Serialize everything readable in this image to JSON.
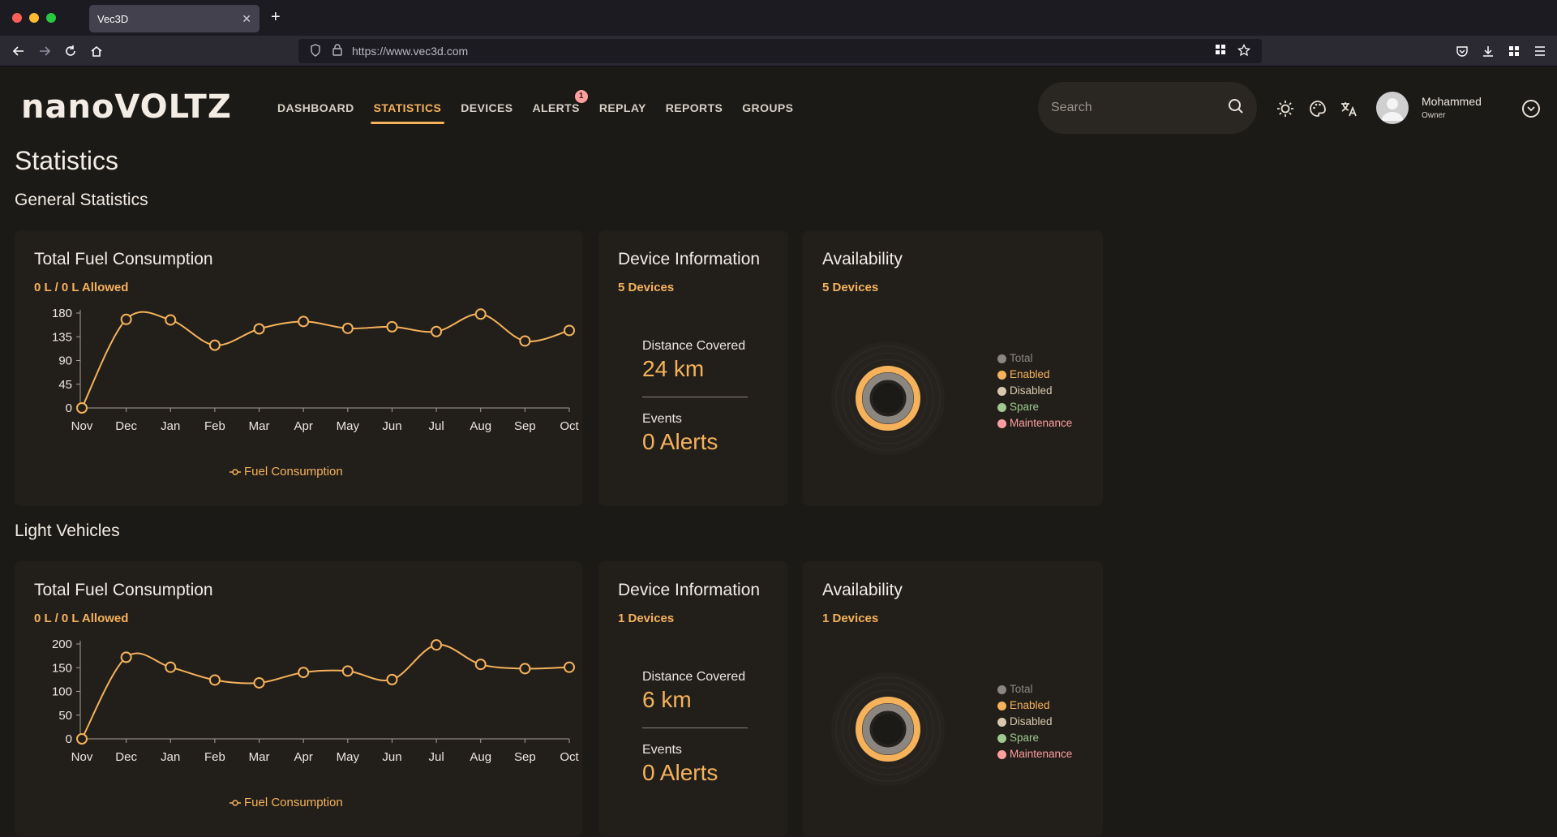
{
  "browser": {
    "tab_title": "Vec3D",
    "url": "https://www.vec3d.com"
  },
  "app": {
    "logo": "nanoVOLTZ",
    "nav": [
      {
        "label": "DASHBOARD"
      },
      {
        "label": "STATISTICS"
      },
      {
        "label": "DEVICES"
      },
      {
        "label": "ALERTS"
      },
      {
        "label": "REPLAY"
      },
      {
        "label": "REPORTS"
      },
      {
        "label": "GROUPS"
      }
    ],
    "active_nav": "STATISTICS",
    "alerts_badge": "1",
    "search_placeholder": "Search",
    "user": {
      "name": "Mohammed",
      "role": "Owner"
    },
    "accent_color": "#f6b25b"
  },
  "page": {
    "title": "Statistics",
    "sections": [
      {
        "title": "General Statistics",
        "fuel": {
          "title": "Total Fuel Consumption",
          "subtitle": "0 L / 0 L Allowed",
          "legend": "Fuel Consumption"
        },
        "device": {
          "title": "Device Information",
          "subtitle": "5 Devices",
          "distance_label": "Distance Covered",
          "distance_value": "24 km",
          "events_label": "Events",
          "events_value": "0 Alerts"
        },
        "availability": {
          "title": "Availability",
          "subtitle": "5 Devices",
          "legend": [
            "Total",
            "Enabled",
            "Disabled",
            "Spare",
            "Maintenance"
          ]
        }
      },
      {
        "title": "Light Vehicles",
        "fuel": {
          "title": "Total Fuel Consumption",
          "subtitle": "0 L / 0 L Allowed",
          "legend": "Fuel Consumption"
        },
        "device": {
          "title": "Device Information",
          "subtitle": "1 Devices",
          "distance_label": "Distance Covered",
          "distance_value": "6 km",
          "events_label": "Events",
          "events_value": "0 Alerts"
        },
        "availability": {
          "title": "Availability",
          "subtitle": "1 Devices",
          "legend": [
            "Total",
            "Enabled",
            "Disabled",
            "Spare",
            "Maintenance"
          ]
        }
      }
    ]
  },
  "legend_colors": {
    "Total": "#8c8680",
    "Enabled": "#f6b25b",
    "Disabled": "#d9c8ad",
    "Spare": "#9fc98f",
    "Maintenance": "#ff9e9e"
  },
  "chart_data": [
    {
      "type": "line",
      "categories": [
        "Nov",
        "Dec",
        "Jan",
        "Feb",
        "Mar",
        "Apr",
        "May",
        "Jun",
        "Jul",
        "Aug",
        "Sep",
        "Oct"
      ],
      "series": [
        {
          "name": "Fuel Consumption",
          "values": [
            0,
            168,
            167,
            119,
            150,
            164,
            151,
            154,
            145,
            178,
            127,
            147
          ]
        }
      ],
      "yticks": [
        0,
        45,
        90,
        135,
        180
      ],
      "ylim": [
        0,
        180
      ],
      "color": "#f6b25b"
    },
    {
      "type": "line",
      "categories": [
        "Nov",
        "Dec",
        "Jan",
        "Feb",
        "Mar",
        "Apr",
        "May",
        "Jun",
        "Jul",
        "Aug",
        "Sep",
        "Oct"
      ],
      "series": [
        {
          "name": "Fuel Consumption",
          "values": [
            0,
            172,
            151,
            124,
            118,
            140,
            143,
            125,
            198,
            157,
            148,
            151
          ]
        }
      ],
      "yticks": [
        0,
        50,
        100,
        150,
        200
      ],
      "ylim": [
        0,
        200
      ],
      "color": "#f6b25b"
    }
  ]
}
